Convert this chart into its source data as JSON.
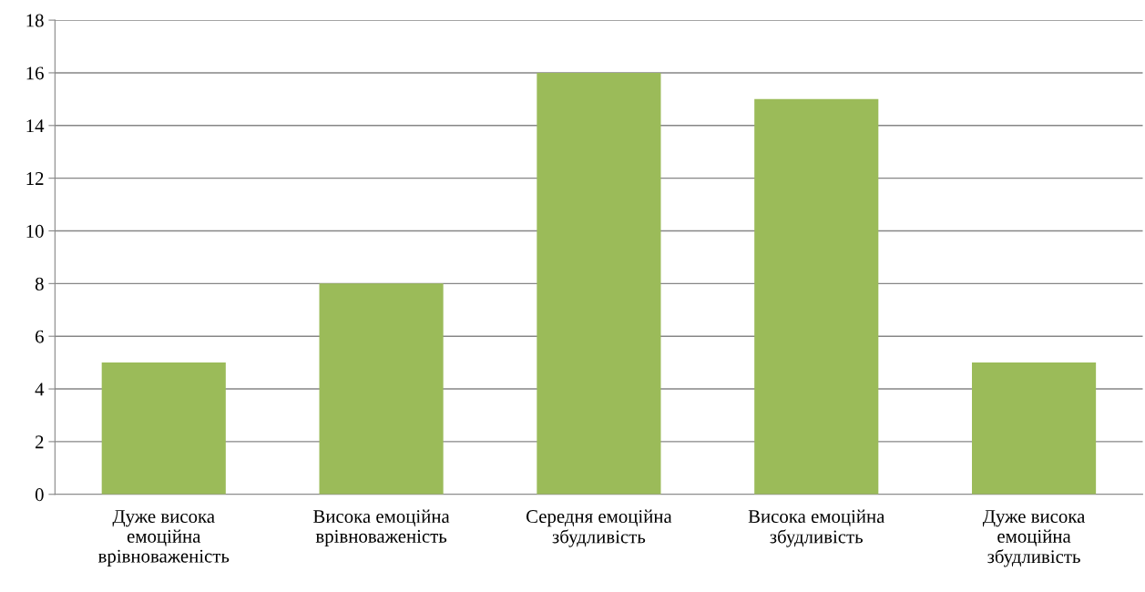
{
  "chart_data": {
    "type": "bar",
    "categories": [
      "Дуже висока емоційна врівноваженість",
      "Висока емоційна врівноваженість",
      "Середня емоційна збудливість",
      "Висока емоційна збудливість",
      "Дуже висока емоційна збудливість"
    ],
    "values": [
      5,
      8,
      16,
      15,
      5
    ],
    "color": "#9bbb59",
    "ylim": [
      0,
      18
    ],
    "yticks": [
      0,
      2,
      4,
      6,
      8,
      10,
      12,
      14,
      16,
      18
    ],
    "grid": "y"
  }
}
